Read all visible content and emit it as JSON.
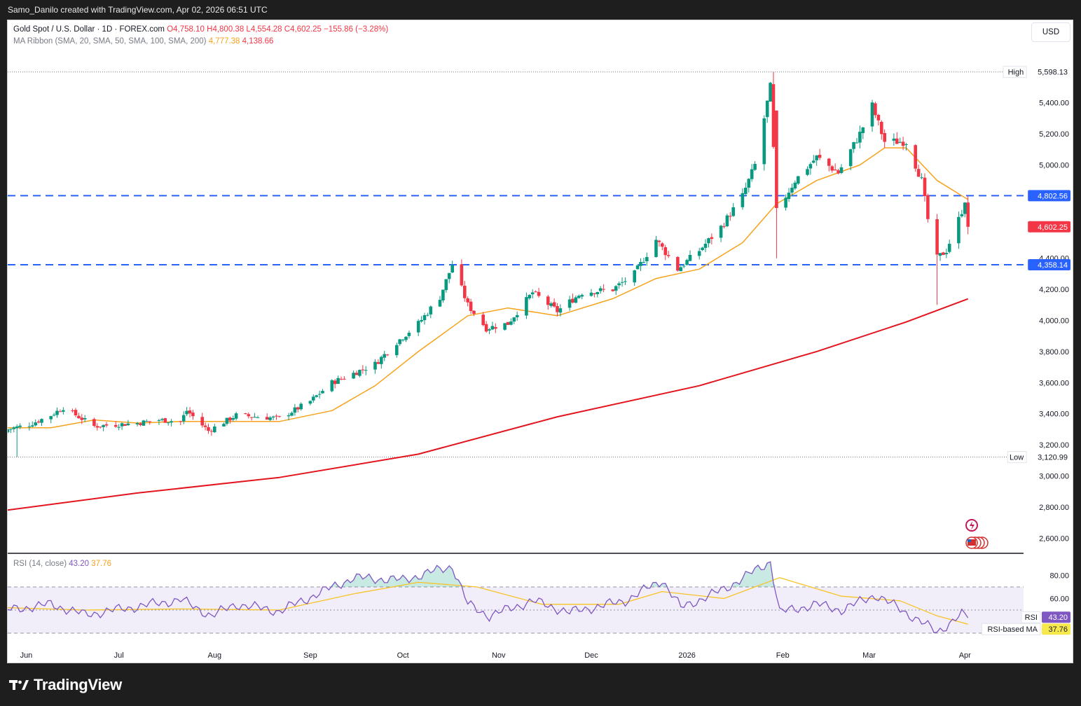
{
  "header": {
    "caption": "Samo_Danilo created with TradingView.com, Apr 02, 2026 06:51 UTC"
  },
  "legend": {
    "symbol": "Gold Spot / U.S. Dollar · 1D · FOREX.com",
    "open": "O4,758.10",
    "high": "H4,800.38",
    "low": "L4,554.28",
    "close": "C4,602.25",
    "change": "−155.86 (−3.28%)",
    "ma_label": "MA Ribbon (SMA, 20, SMA, 50, SMA, 100, SMA, 200)",
    "ma_value_1": "4,777.38",
    "ma_value_2": "4,138.66",
    "rsi_label": "RSI (14, close)",
    "rsi_value": "43.20",
    "rsi_ma_value": "37.76"
  },
  "currency_button": "USD",
  "footer": {
    "brand": "TradingView"
  },
  "colors": {
    "up": "#089981",
    "down": "#f23645",
    "sma20": "#f7a21b",
    "sma200": "#e3141e",
    "level": "#2962ff",
    "rsi": "#7e57c2",
    "rsi_ma": "#f7c325",
    "background": "#ffffff"
  },
  "chart_data": [
    {
      "type": "candlestick",
      "title": "Gold Spot / U.S. Dollar · 1D · FOREX.com",
      "ylim": [
        2500,
        5700
      ],
      "y_ticks": [
        "2,600.00",
        "2,800.00",
        "3,000.00",
        "3,200.00",
        "3,400.00",
        "3,600.00",
        "3,800.00",
        "4,000.00",
        "4,200.00",
        "4,400.00",
        "5,000.00",
        "5,200.00",
        "5,400.00"
      ],
      "x_ticks": [
        "Jun",
        "Jul",
        "Aug",
        "Sep",
        "Oct",
        "Nov",
        "Dec",
        "2026",
        "Feb",
        "Mar",
        "Apr"
      ],
      "x_range": [
        "2025-05-26",
        "2026-04-20"
      ],
      "high_marker": {
        "label": "High",
        "value": "5,598.13"
      },
      "low_marker": {
        "label": "Low",
        "value": "3,120.99"
      },
      "horizontal_levels": [
        {
          "value": "4,802.56"
        },
        {
          "value": "4,358.14"
        }
      ],
      "last_price": "4,602.25",
      "series": [
        {
          "name": "Price",
          "style": "candles",
          "points": [
            [
              "2025-05-26",
              3300
            ],
            [
              "2025-06-02",
              3330
            ],
            [
              "2025-06-09",
              3390
            ],
            [
              "2025-06-13",
              3440
            ],
            [
              "2025-06-23",
              3320
            ],
            [
              "2025-06-30",
              3330
            ],
            [
              "2025-07-07",
              3340
            ],
            [
              "2025-07-14",
              3360
            ],
            [
              "2025-07-21",
              3350
            ],
            [
              "2025-07-23",
              3420
            ],
            [
              "2025-07-30",
              3290
            ],
            [
              "2025-08-08",
              3390
            ],
            [
              "2025-08-22",
              3370
            ],
            [
              "2025-09-01",
              3480
            ],
            [
              "2025-09-08",
              3600
            ],
            [
              "2025-09-15",
              3660
            ],
            [
              "2025-09-22",
              3720
            ],
            [
              "2025-09-29",
              3860
            ],
            [
              "2025-10-06",
              3980
            ],
            [
              "2025-10-13",
              4150
            ],
            [
              "2025-10-17",
              4360
            ],
            [
              "2025-10-22",
              4100
            ],
            [
              "2025-10-28",
              3950
            ],
            [
              "2025-11-04",
              3980
            ],
            [
              "2025-11-12",
              4180
            ],
            [
              "2025-11-20",
              4060
            ],
            [
              "2025-11-28",
              4180
            ],
            [
              "2025-12-08",
              4200
            ],
            [
              "2025-12-15",
              4300
            ],
            [
              "2025-12-22",
              4520
            ],
            [
              "2025-12-29",
              4330
            ],
            [
              "2026-01-05",
              4450
            ],
            [
              "2026-01-12",
              4600
            ],
            [
              "2026-01-19",
              4800
            ],
            [
              "2026-01-23",
              5000
            ],
            [
              "2026-01-28",
              5500
            ],
            [
              "2026-01-30",
              4700
            ],
            [
              "2026-02-05",
              4900
            ],
            [
              "2026-02-12",
              5050
            ],
            [
              "2026-02-19",
              4950
            ],
            [
              "2026-02-26",
              5200
            ],
            [
              "2026-03-02",
              5380
            ],
            [
              "2026-03-06",
              5150
            ],
            [
              "2026-03-13",
              5150
            ],
            [
              "2026-03-18",
              4900
            ],
            [
              "2026-03-20",
              4650
            ],
            [
              "2026-03-23",
              4400
            ],
            [
              "2026-03-26",
              4450
            ],
            [
              "2026-03-30",
              4650
            ],
            [
              "2026-04-01",
              4758.1
            ],
            [
              "2026-04-02",
              4602.25
            ]
          ]
        },
        {
          "name": "SMA 20",
          "style": "line",
          "points": [
            [
              "2025-05-26",
              3310
            ],
            [
              "2025-06-09",
              3310
            ],
            [
              "2025-06-23",
              3360
            ],
            [
              "2025-07-07",
              3340
            ],
            [
              "2025-07-21",
              3350
            ],
            [
              "2025-08-08",
              3350
            ],
            [
              "2025-08-22",
              3350
            ],
            [
              "2025-09-08",
              3420
            ],
            [
              "2025-09-22",
              3580
            ],
            [
              "2025-10-06",
              3800
            ],
            [
              "2025-10-22",
              4030
            ],
            [
              "2025-11-04",
              4080
            ],
            [
              "2025-11-20",
              4030
            ],
            [
              "2025-12-08",
              4140
            ],
            [
              "2025-12-22",
              4270
            ],
            [
              "2026-01-05",
              4330
            ],
            [
              "2026-01-19",
              4500
            ],
            [
              "2026-01-30",
              4750
            ],
            [
              "2026-02-12",
              4900
            ],
            [
              "2026-02-26",
              5000
            ],
            [
              "2026-03-06",
              5110
            ],
            [
              "2026-03-13",
              5110
            ],
            [
              "2026-03-23",
              4900
            ],
            [
              "2026-04-02",
              4777.38
            ]
          ]
        },
        {
          "name": "SMA 200",
          "style": "line",
          "points": [
            [
              "2025-05-26",
              2780
            ],
            [
              "2025-07-07",
              2890
            ],
            [
              "2025-08-22",
              2990
            ],
            [
              "2025-10-06",
              3140
            ],
            [
              "2025-11-20",
              3380
            ],
            [
              "2026-01-05",
              3580
            ],
            [
              "2026-02-12",
              3800
            ],
            [
              "2026-03-13",
              3990
            ],
            [
              "2026-04-02",
              4138.66
            ]
          ]
        }
      ]
    },
    {
      "type": "line",
      "title": "RSI (14, close)",
      "ylim": [
        25,
        100
      ],
      "y_ticks": [
        "60.00",
        "80.00"
      ],
      "band": [
        30,
        70
      ],
      "last_values": {
        "RSI": "43.20",
        "RSI-based MA": "37.76"
      },
      "series": [
        {
          "name": "RSI",
          "points": [
            [
              "2025-05-26",
              50
            ],
            [
              "2025-06-09",
              55
            ],
            [
              "2025-06-20",
              46
            ],
            [
              "2025-07-07",
              53
            ],
            [
              "2025-07-21",
              59
            ],
            [
              "2025-07-31",
              45
            ],
            [
              "2025-08-08",
              55
            ],
            [
              "2025-08-22",
              49
            ],
            [
              "2025-09-05",
              66
            ],
            [
              "2025-09-15",
              78
            ],
            [
              "2025-10-01",
              76
            ],
            [
              "2025-10-17",
              88
            ],
            [
              "2025-10-22",
              55
            ],
            [
              "2025-10-29",
              45
            ],
            [
              "2025-11-12",
              58
            ],
            [
              "2025-11-24",
              48
            ],
            [
              "2025-12-12",
              58
            ],
            [
              "2025-12-24",
              76
            ],
            [
              "2025-12-30",
              52
            ],
            [
              "2026-01-13",
              68
            ],
            [
              "2026-01-28",
              92
            ],
            [
              "2026-01-31",
              48
            ],
            [
              "2026-02-12",
              55
            ],
            [
              "2026-02-20",
              50
            ],
            [
              "2026-03-03",
              63
            ],
            [
              "2026-03-11",
              51
            ],
            [
              "2026-03-23",
              31
            ],
            [
              "2026-03-31",
              46
            ],
            [
              "2026-04-02",
              43.2
            ]
          ]
        },
        {
          "name": "RSI-based MA",
          "points": [
            [
              "2025-05-26",
              52
            ],
            [
              "2025-06-20",
              50
            ],
            [
              "2025-07-21",
              51
            ],
            [
              "2025-08-22",
              50
            ],
            [
              "2025-09-15",
              64
            ],
            [
              "2025-10-06",
              74
            ],
            [
              "2025-10-25",
              70
            ],
            [
              "2025-11-15",
              55
            ],
            [
              "2025-12-10",
              55
            ],
            [
              "2025-12-24",
              66
            ],
            [
              "2026-01-13",
              60
            ],
            [
              "2026-01-31",
              78
            ],
            [
              "2026-02-20",
              62
            ],
            [
              "2026-03-11",
              58
            ],
            [
              "2026-03-23",
              45
            ],
            [
              "2026-04-02",
              37.76
            ]
          ]
        }
      ]
    }
  ]
}
